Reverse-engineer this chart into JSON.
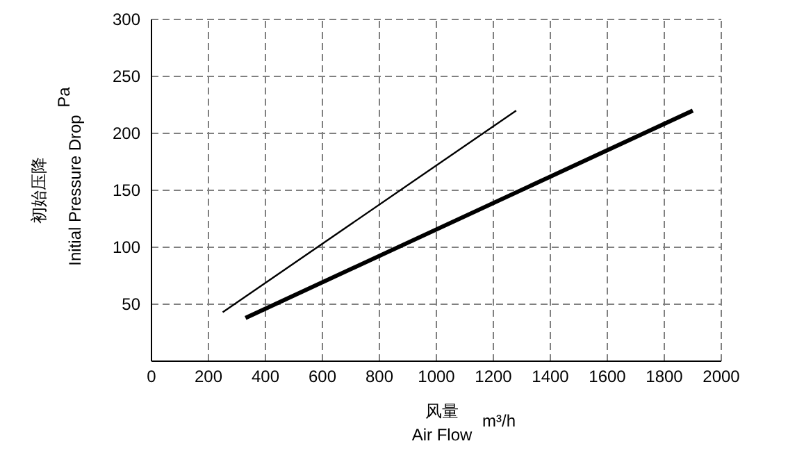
{
  "chart_data": {
    "type": "line",
    "xlabel": "风量\nAir Flow",
    "ylabel": "初始压降\nInitial Pressure Drop",
    "annotations": [
      "Pa",
      "m³/h"
    ],
    "xlim": [
      0,
      2000
    ],
    "xticks": [
      0,
      200,
      400,
      600,
      800,
      1000,
      1200,
      1400,
      1600,
      1800,
      2000
    ],
    "ylim": [
      0,
      300
    ],
    "yticks": [
      {
        "value": 0,
        "label": null
      },
      50,
      100,
      150,
      200,
      250,
      300
    ],
    "grid": true,
    "series": [
      {
        "color": "#000000",
        "x": [
          250,
          1280
        ],
        "values": [
          43,
          220
        ]
      },
      {
        "color": "#000000",
        "x": [
          330,
          1900
        ],
        "values": [
          38,
          220
        ]
      }
    ]
  }
}
